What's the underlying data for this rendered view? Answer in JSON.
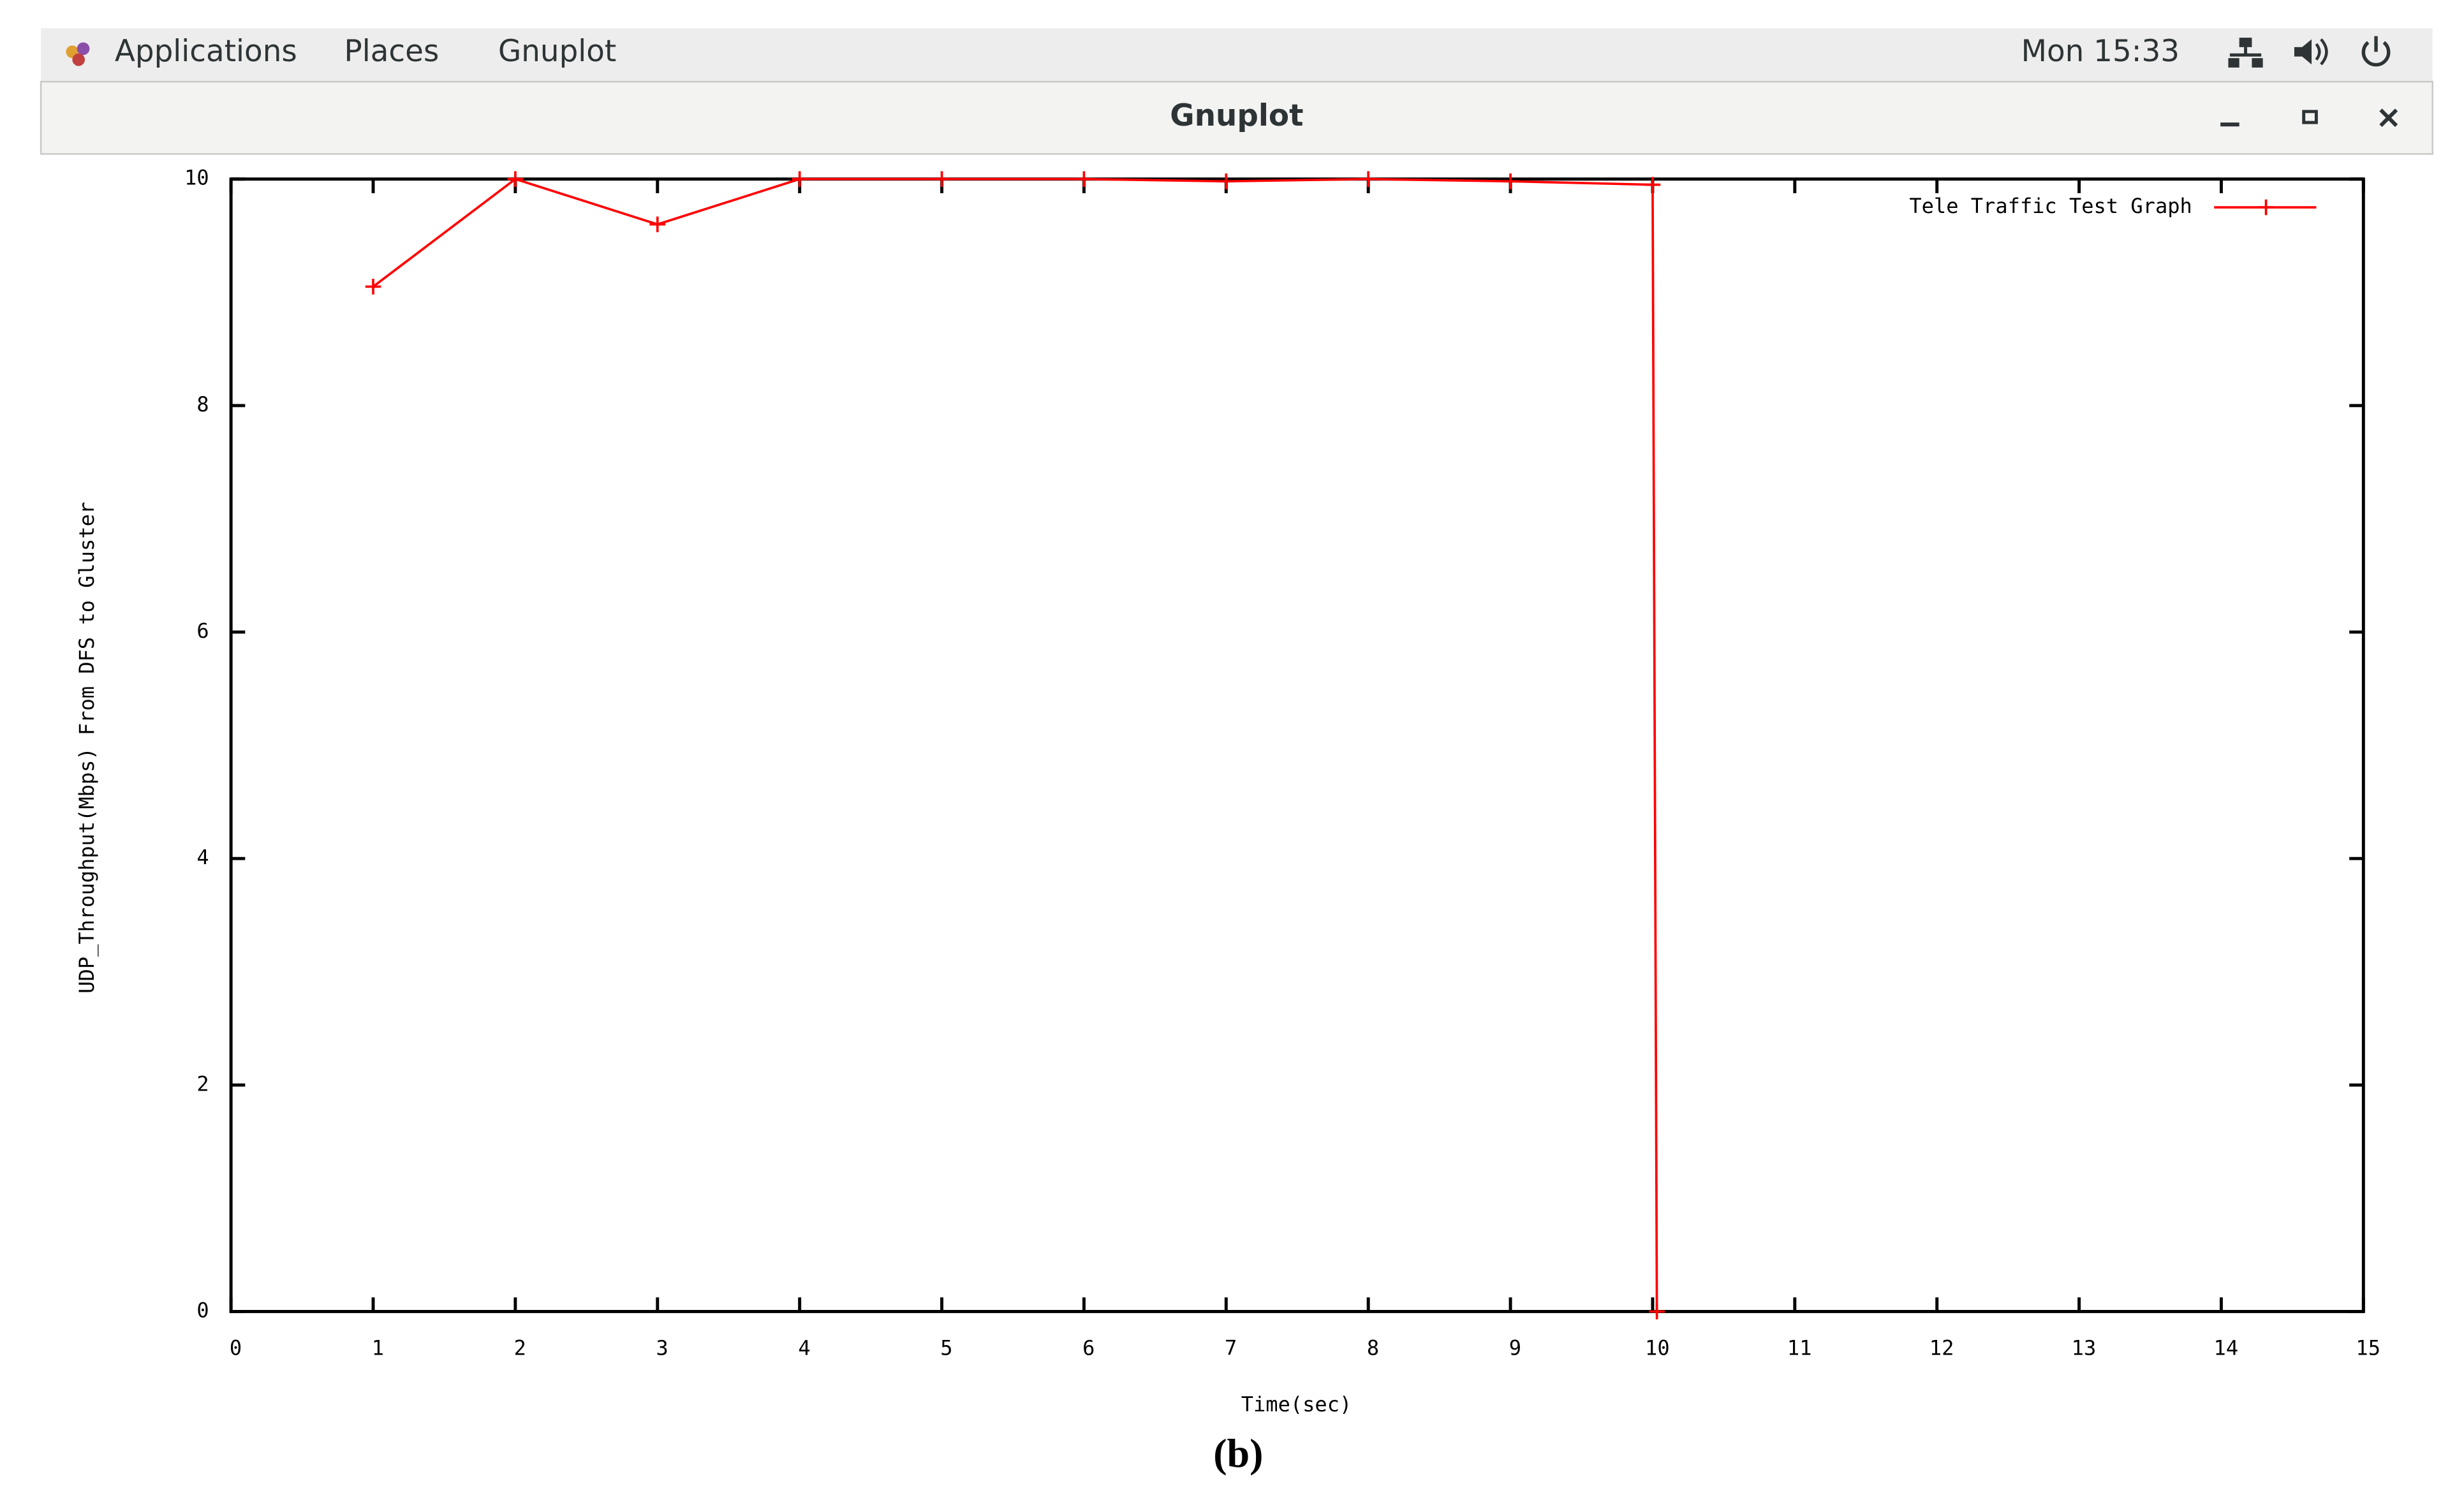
{
  "top_bar": {
    "menus": [
      "Applications",
      "Places",
      "Gnuplot"
    ],
    "clock": "Mon 15:33"
  },
  "window": {
    "title": "Gnuplot"
  },
  "chart_data": {
    "type": "line",
    "x_label": "Time(sec)",
    "y_label": "UDP_Throughput(Mbps) From DFS to Gluster",
    "xlim": [
      0,
      15
    ],
    "ylim": [
      0,
      10
    ],
    "xticks": [
      0,
      1,
      2,
      3,
      4,
      5,
      6,
      7,
      8,
      9,
      10,
      11,
      12,
      13,
      14,
      15
    ],
    "yticks": [
      0,
      2,
      4,
      6,
      8,
      10
    ],
    "legend_position": "upper right",
    "series": [
      {
        "name": "Tele Traffic Test Graph",
        "color": "#ff0000",
        "x": [
          1,
          2,
          3,
          4,
          5,
          6,
          7,
          8,
          9,
          10,
          10.03
        ],
        "values": [
          9.05,
          10,
          9.6,
          10,
          10,
          10,
          9.98,
          10,
          9.98,
          9.95,
          0
        ]
      }
    ]
  },
  "caption": "(b)"
}
